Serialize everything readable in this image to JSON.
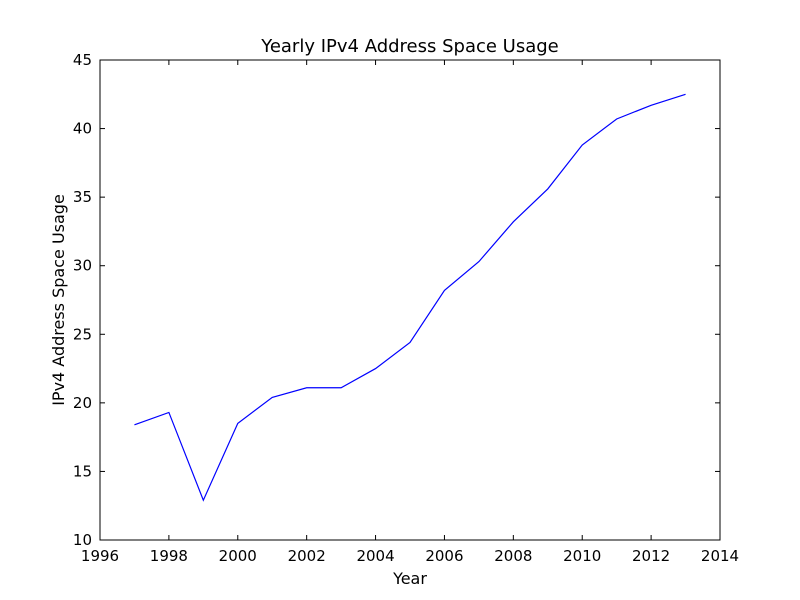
{
  "chart_data": {
    "type": "line",
    "title": "Yearly IPv4 Address Space Usage",
    "xlabel": "Year",
    "ylabel": "IPv4 Address Space Usage",
    "xlim": [
      1996,
      2014
    ],
    "ylim": [
      10,
      45
    ],
    "xticks": [
      "1996",
      "1998",
      "2000",
      "2002",
      "2004",
      "2006",
      "2008",
      "2010",
      "2012",
      "2014"
    ],
    "yticks": [
      "10",
      "15",
      "20",
      "25",
      "30",
      "35",
      "40",
      "45"
    ],
    "grid": false,
    "legend": "none",
    "series": [
      {
        "color": "#0000ff",
        "x": [
          1997,
          1998,
          1999,
          2000,
          2001,
          2002,
          2003,
          2004,
          2005,
          2006,
          2007,
          2008,
          2009,
          2010,
          2011,
          2012,
          2013
        ],
        "y": [
          18.4,
          19.3,
          12.9,
          18.5,
          20.4,
          21.1,
          21.1,
          22.5,
          24.4,
          28.2,
          30.3,
          33.2,
          35.6,
          38.8,
          40.7,
          41.7,
          42.5
        ]
      }
    ]
  }
}
